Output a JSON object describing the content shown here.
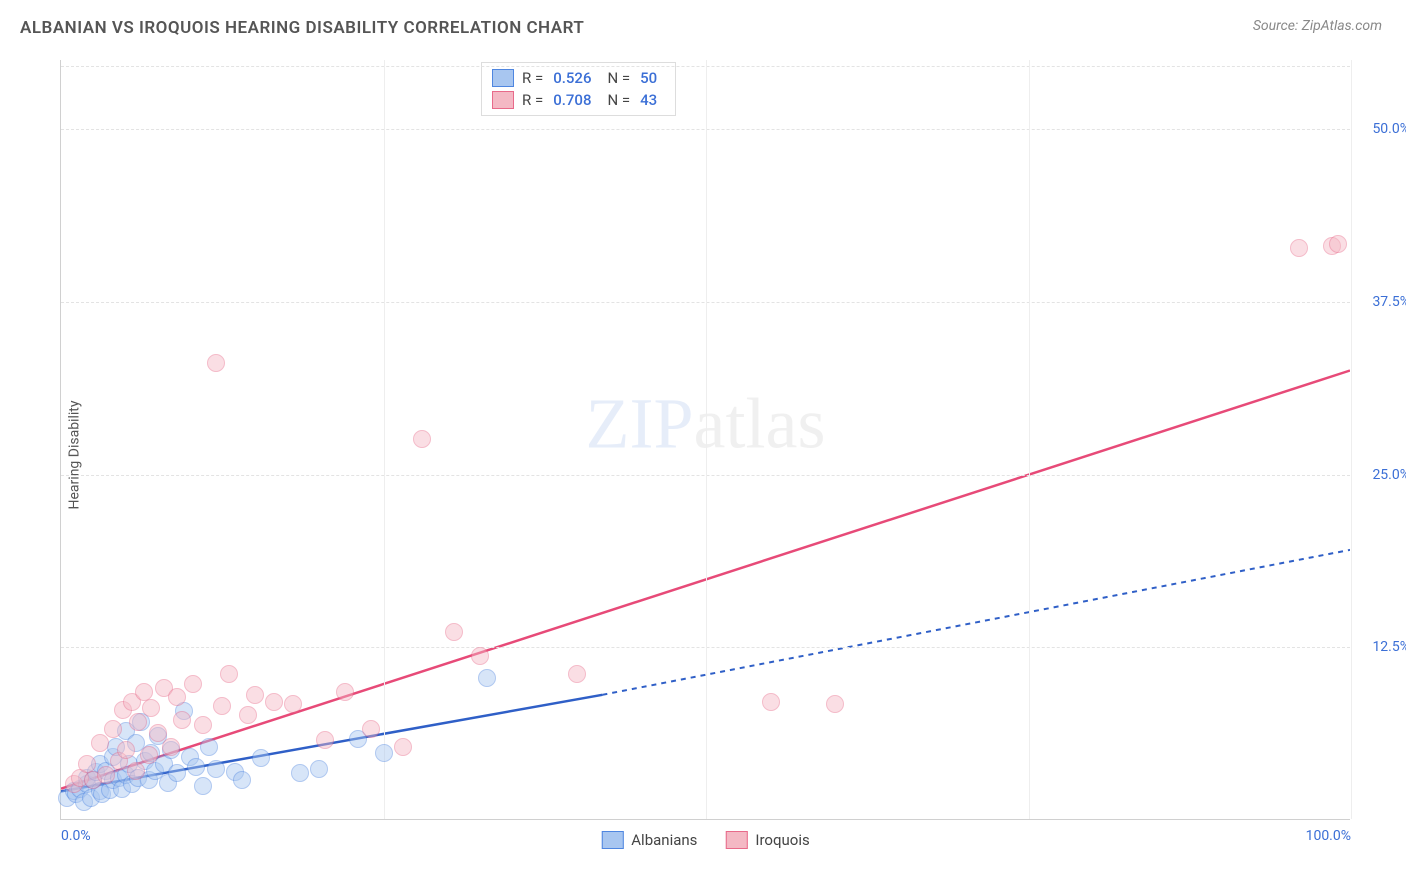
{
  "title": "ALBANIAN VS IROQUOIS HEARING DISABILITY CORRELATION CHART",
  "source_label": "Source:",
  "source_value": "ZipAtlas.com",
  "ylabel": "Hearing Disability",
  "watermark_a": "ZIP",
  "watermark_b": "atlas",
  "chart": {
    "type": "scatter",
    "xlim": [
      0,
      100
    ],
    "ylim": [
      0,
      55
    ],
    "yticks": [
      12.5,
      25.0,
      37.5,
      50.0
    ],
    "ytick_labels": [
      "12.5%",
      "25.0%",
      "37.5%",
      "50.0%"
    ],
    "xticks": [
      0,
      25,
      50,
      75,
      100
    ],
    "xtick_labels_shown": {
      "0": "0.0%",
      "100": "100.0%"
    },
    "grid_color": "#e3e3e3",
    "background": "#ffffff",
    "axis_label_color": "#3b6fd6",
    "axis_label_fontsize": 14,
    "series": [
      {
        "name": "Albanians",
        "fill": "#a8c6f0",
        "stroke": "#4f86e0",
        "line_color": "#2f5fc7",
        "line_dash_ext": "5,5",
        "marker_radius": 9,
        "fill_opacity": 0.45,
        "R": "0.526",
        "N": "50",
        "trend": {
          "x1": 0,
          "y1": 2.0,
          "x2_solid": 42,
          "y2_solid": 9.0,
          "x2": 100,
          "y2": 19.5
        },
        "points": [
          [
            0.5,
            1.5
          ],
          [
            1,
            2
          ],
          [
            1.2,
            1.8
          ],
          [
            1.5,
            2.2
          ],
          [
            1.8,
            1.2
          ],
          [
            2,
            2.5
          ],
          [
            2,
            3
          ],
          [
            2.3,
            1.5
          ],
          [
            2.5,
            2.8
          ],
          [
            2.7,
            3.4
          ],
          [
            3,
            2
          ],
          [
            3,
            4
          ],
          [
            3.2,
            1.8
          ],
          [
            3.5,
            3.5
          ],
          [
            3.8,
            2.1
          ],
          [
            4,
            4.5
          ],
          [
            4,
            2.8
          ],
          [
            4.3,
            5.2
          ],
          [
            4.5,
            3
          ],
          [
            4.7,
            2.2
          ],
          [
            5,
            6.4
          ],
          [
            5,
            3.2
          ],
          [
            5.3,
            4
          ],
          [
            5.5,
            2.5
          ],
          [
            5.8,
            5.5
          ],
          [
            6,
            3
          ],
          [
            6.2,
            7
          ],
          [
            6.5,
            4.2
          ],
          [
            6.8,
            2.8
          ],
          [
            7,
            4.8
          ],
          [
            7.3,
            3.5
          ],
          [
            7.5,
            6
          ],
          [
            8,
            4
          ],
          [
            8.3,
            2.6
          ],
          [
            8.5,
            5
          ],
          [
            9,
            3.3
          ],
          [
            9.5,
            7.8
          ],
          [
            10,
            4.5
          ],
          [
            10.5,
            3.8
          ],
          [
            11,
            2.4
          ],
          [
            11.5,
            5.2
          ],
          [
            12,
            3.6
          ],
          [
            13.5,
            3.4
          ],
          [
            14,
            2.8
          ],
          [
            15.5,
            4.4
          ],
          [
            18.5,
            3.3
          ],
          [
            20,
            3.6
          ],
          [
            23,
            5.8
          ],
          [
            25,
            4.8
          ],
          [
            33,
            10.2
          ]
        ]
      },
      {
        "name": "Iroquois",
        "fill": "#f4b8c4",
        "stroke": "#e86a8a",
        "line_color": "#e74a78",
        "marker_radius": 9,
        "fill_opacity": 0.45,
        "R": "0.708",
        "N": "43",
        "trend": {
          "x1": 0,
          "y1": 2.2,
          "x2_solid": 100,
          "y2_solid": 32.5,
          "x2": 100,
          "y2": 32.5
        },
        "points": [
          [
            1,
            2.5
          ],
          [
            1.5,
            3
          ],
          [
            2,
            4
          ],
          [
            2.5,
            2.8
          ],
          [
            3,
            5.5
          ],
          [
            3.5,
            3.2
          ],
          [
            4,
            6.5
          ],
          [
            4.5,
            4.2
          ],
          [
            4.8,
            7.9
          ],
          [
            5,
            5
          ],
          [
            5.5,
            8.5
          ],
          [
            5.8,
            3.5
          ],
          [
            6,
            7
          ],
          [
            6.4,
            9.2
          ],
          [
            6.8,
            4.6
          ],
          [
            7,
            8
          ],
          [
            7.5,
            6.2
          ],
          [
            8,
            9.5
          ],
          [
            8.5,
            5.2
          ],
          [
            9,
            8.8
          ],
          [
            9.4,
            7.2
          ],
          [
            10.2,
            9.8
          ],
          [
            11,
            6.8
          ],
          [
            12,
            33
          ],
          [
            12.5,
            8.2
          ],
          [
            13,
            10.5
          ],
          [
            14.5,
            7.5
          ],
          [
            15,
            9
          ],
          [
            16.5,
            8.5
          ],
          [
            18,
            8.3
          ],
          [
            20.5,
            5.7
          ],
          [
            22,
            9.2
          ],
          [
            24,
            6.5
          ],
          [
            26.5,
            5.2
          ],
          [
            28,
            27.5
          ],
          [
            30.5,
            13.5
          ],
          [
            32.5,
            11.8
          ],
          [
            40,
            10.5
          ],
          [
            55,
            8.5
          ],
          [
            60,
            8.3
          ],
          [
            96,
            41.3
          ],
          [
            98.5,
            41.5
          ],
          [
            99,
            41.6
          ]
        ]
      }
    ]
  },
  "legend_bottom": [
    {
      "label": "Albanians",
      "fill": "#a8c6f0",
      "stroke": "#4f86e0"
    },
    {
      "label": "Iroquois",
      "fill": "#f4b8c4",
      "stroke": "#e86a8a"
    }
  ]
}
